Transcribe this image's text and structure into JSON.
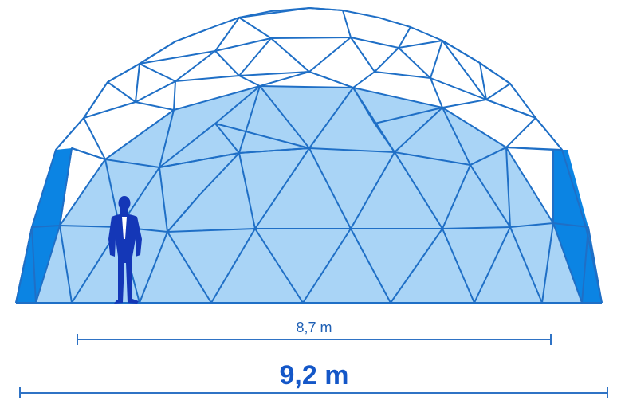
{
  "inner_dimension": {
    "label": "8,7 m"
  },
  "outer_dimension": {
    "label": "9,2 m"
  },
  "icons": {
    "person": "person-in-suit-icon"
  },
  "colors": {
    "frame": "#1f6fc6",
    "inner_fill": "#a9d4f6",
    "side_panel": "#0b84e3",
    "person": "#1437b7",
    "dimension_line": "#2f73c5",
    "dimension_text": "#1457c8"
  }
}
